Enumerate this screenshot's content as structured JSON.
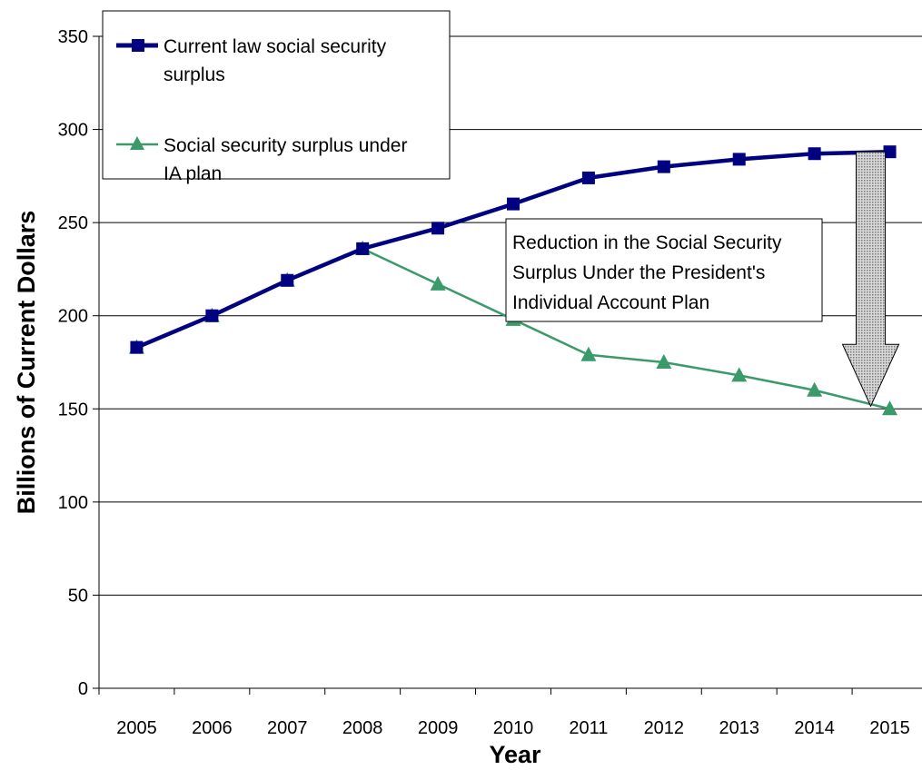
{
  "chart_data": {
    "type": "line",
    "title": "",
    "xlabel": "Year",
    "ylabel": "Billions of Current Dollars",
    "categories": [
      "2005",
      "2006",
      "2007",
      "2008",
      "2009",
      "2010",
      "2011",
      "2012",
      "2013",
      "2014",
      "2015"
    ],
    "ylim": [
      0,
      350
    ],
    "yticks": [
      0,
      50,
      100,
      150,
      200,
      250,
      300,
      350
    ],
    "grid": "horizontal",
    "legend_position": "top-left",
    "series": [
      {
        "name": "Current law social security surplus",
        "values": [
          183,
          200,
          219,
          236,
          247,
          260,
          274,
          280,
          284,
          287,
          288
        ],
        "color": "#000080",
        "marker": "square"
      },
      {
        "name": "Social security surplus under IA plan",
        "values": [
          183,
          200,
          219,
          236,
          217,
          198,
          179,
          175,
          168,
          160,
          150
        ],
        "color": "#3a9a6a",
        "marker": "triangle"
      }
    ],
    "annotation": {
      "lines": [
        "Reduction in the Social Security",
        "Surplus Under the President's",
        "Individual Account Plan"
      ]
    }
  }
}
